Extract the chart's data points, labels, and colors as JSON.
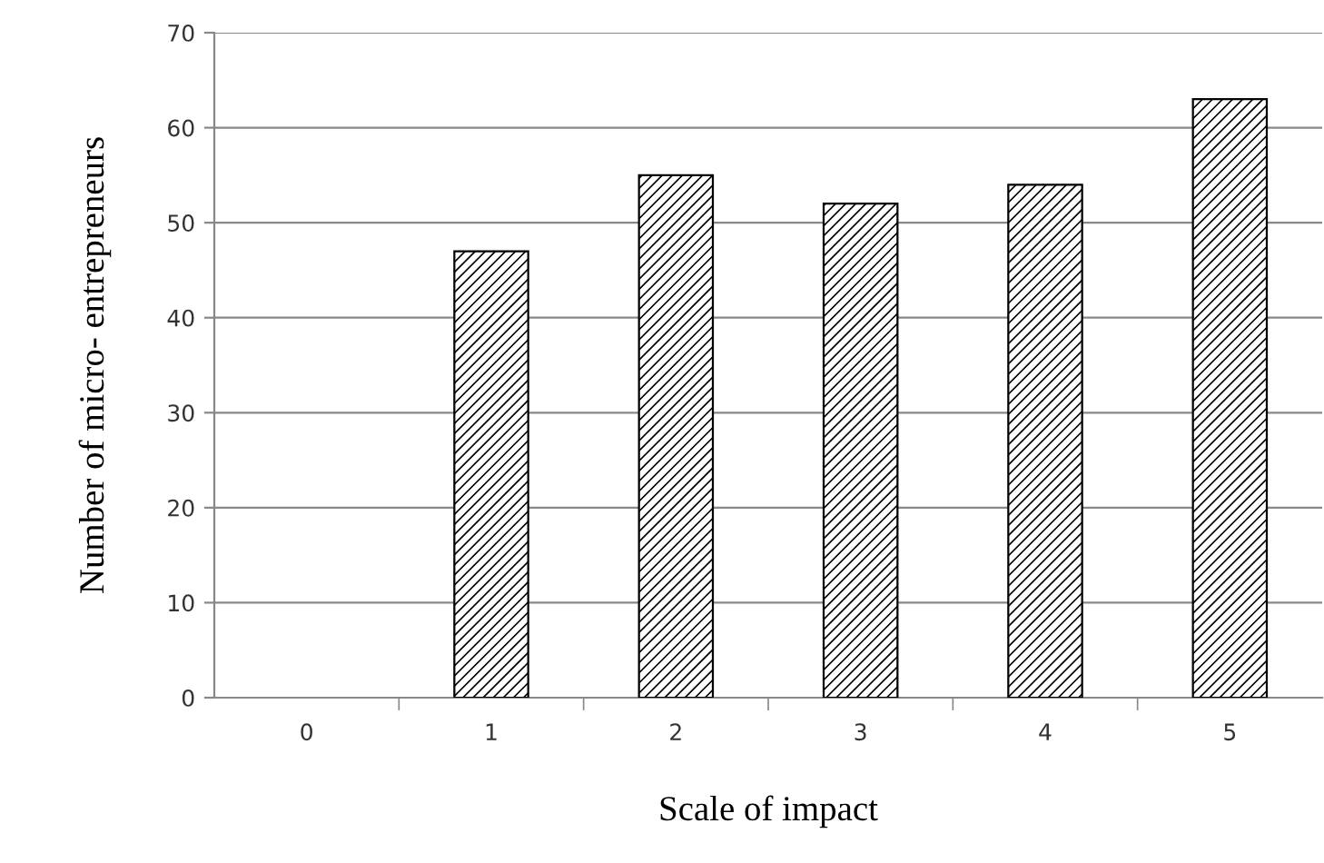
{
  "chart_data": {
    "type": "bar",
    "xlabel": "Scale of impact",
    "ylabel": "Number of micro- entrepreneurs",
    "categories": [
      "0",
      "1",
      "2",
      "3",
      "4",
      "5"
    ],
    "values": [
      null,
      47,
      55,
      52,
      54,
      63
    ],
    "color": "#000000",
    "ylim": [
      0,
      70
    ],
    "yticks": [
      0,
      10,
      20,
      30,
      40,
      50,
      60,
      70
    ],
    "grid": "y",
    "legend": false
  }
}
